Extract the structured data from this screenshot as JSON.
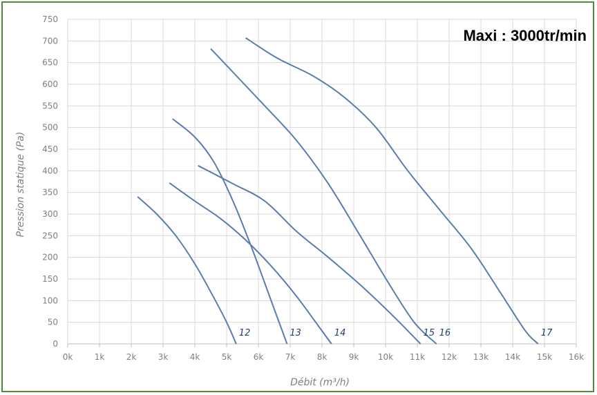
{
  "chart_data": {
    "type": "line",
    "title": "Maxi : 3000tr/min",
    "xlabel": "Débit (m³/h)",
    "ylabel": "Pression statique (Pa)",
    "xlim": [
      0,
      16000
    ],
    "ylim": [
      0,
      750
    ],
    "x_ticks": [
      {
        "value": 0,
        "label": "0k"
      },
      {
        "value": 1000,
        "label": "1k"
      },
      {
        "value": 2000,
        "label": "2k"
      },
      {
        "value": 3000,
        "label": "3k"
      },
      {
        "value": 4000,
        "label": "4k"
      },
      {
        "value": 5000,
        "label": "5k"
      },
      {
        "value": 6000,
        "label": "6k"
      },
      {
        "value": 7000,
        "label": "7k"
      },
      {
        "value": 8000,
        "label": "8k"
      },
      {
        "value": 9000,
        "label": "9k"
      },
      {
        "value": 10000,
        "label": "10k"
      },
      {
        "value": 11000,
        "label": "11k"
      },
      {
        "value": 12000,
        "label": "12k"
      },
      {
        "value": 13000,
        "label": "13k"
      },
      {
        "value": 14000,
        "label": "14k"
      },
      {
        "value": 15000,
        "label": "15k"
      },
      {
        "value": 16000,
        "label": "16k"
      }
    ],
    "y_ticks": [
      {
        "value": 0,
        "label": "0"
      },
      {
        "value": 50,
        "label": "50"
      },
      {
        "value": 100,
        "label": "100"
      },
      {
        "value": 150,
        "label": "150"
      },
      {
        "value": 200,
        "label": "200"
      },
      {
        "value": 250,
        "label": "250"
      },
      {
        "value": 300,
        "label": "300"
      },
      {
        "value": 350,
        "label": "350"
      },
      {
        "value": 400,
        "label": "400"
      },
      {
        "value": 450,
        "label": "450"
      },
      {
        "value": 500,
        "label": "500"
      },
      {
        "value": 550,
        "label": "550"
      },
      {
        "value": 600,
        "label": "600"
      },
      {
        "value": 650,
        "label": "650"
      },
      {
        "value": 700,
        "label": "700"
      },
      {
        "value": 750,
        "label": "750"
      }
    ],
    "grid": true,
    "legend": "none",
    "line_color": "#5b7bb0",
    "series": [
      {
        "name": "12",
        "points": [
          [
            2200,
            340
          ],
          [
            2800,
            300
          ],
          [
            3400,
            250
          ],
          [
            4000,
            185
          ],
          [
            4500,
            120
          ],
          [
            5000,
            50
          ],
          [
            5300,
            0
          ]
        ]
      },
      {
        "name": "13",
        "points": [
          [
            3300,
            520
          ],
          [
            4000,
            478
          ],
          [
            4600,
            420
          ],
          [
            5200,
            330
          ],
          [
            5800,
            220
          ],
          [
            6400,
            100
          ],
          [
            6900,
            0
          ]
        ]
      },
      {
        "name": "14",
        "points": [
          [
            3200,
            372
          ],
          [
            4000,
            330
          ],
          [
            4800,
            290
          ],
          [
            5600,
            240
          ],
          [
            6400,
            180
          ],
          [
            7200,
            110
          ],
          [
            7900,
            40
          ],
          [
            8300,
            0
          ]
        ]
      },
      {
        "name": "15",
        "points": [
          [
            4100,
            412
          ],
          [
            5200,
            370
          ],
          [
            6200,
            330
          ],
          [
            7200,
            260
          ],
          [
            8200,
            200
          ],
          [
            9300,
            130
          ],
          [
            10300,
            60
          ],
          [
            11100,
            0
          ]
        ]
      },
      {
        "name": "16",
        "points": [
          [
            4500,
            682
          ],
          [
            5300,
            620
          ],
          [
            6200,
            550
          ],
          [
            7200,
            470
          ],
          [
            8200,
            370
          ],
          [
            9200,
            250
          ],
          [
            10100,
            140
          ],
          [
            10900,
            50
          ],
          [
            11600,
            0
          ]
        ]
      },
      {
        "name": "17",
        "points": [
          [
            5600,
            707
          ],
          [
            6600,
            660
          ],
          [
            7700,
            620
          ],
          [
            8700,
            570
          ],
          [
            9700,
            500
          ],
          [
            10700,
            400
          ],
          [
            11700,
            310
          ],
          [
            12700,
            220
          ],
          [
            13600,
            120
          ],
          [
            14400,
            30
          ],
          [
            14800,
            0
          ]
        ]
      }
    ]
  }
}
